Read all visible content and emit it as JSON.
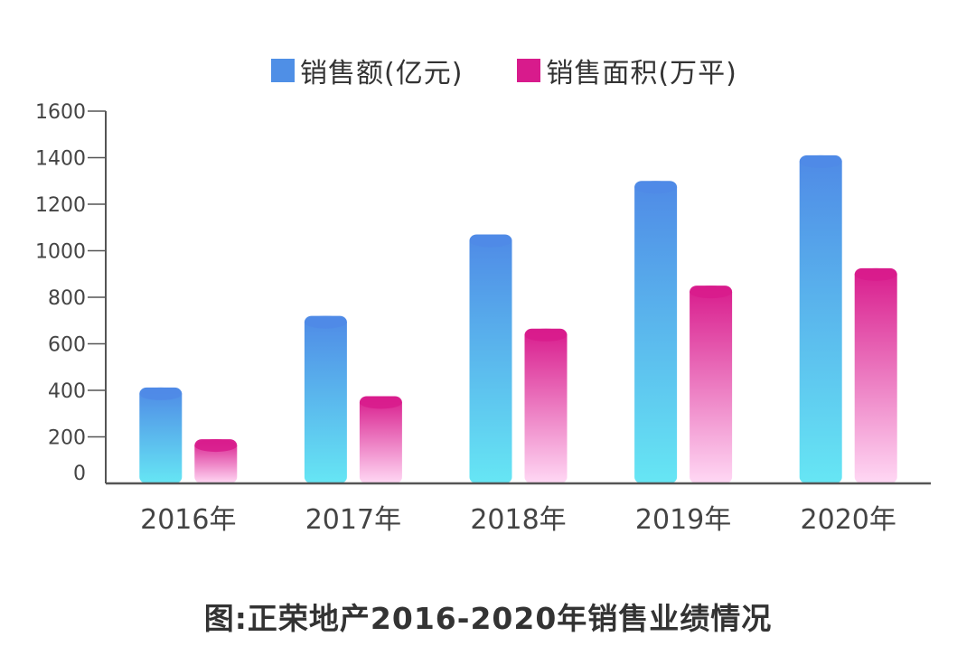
{
  "chart_data": {
    "type": "bar",
    "title": "",
    "caption": "图:正荣地产2016-2020年销售业绩情况",
    "categories": [
      "2016年",
      "2017年",
      "2018年",
      "2019年",
      "2020年"
    ],
    "series": [
      {
        "name": "销售额(亿元)",
        "values": [
          412,
          720,
          1070,
          1300,
          1410
        ],
        "color": "#4f8fe6"
      },
      {
        "name": "销售面积(万平)",
        "values": [
          190,
          375,
          665,
          850,
          925
        ],
        "color": "#d81b8c"
      }
    ],
    "ylim": [
      0,
      1600
    ],
    "yticks": [
      "0",
      "200",
      "400",
      "600",
      "800",
      "1000",
      "1200",
      "1400",
      "1600"
    ],
    "xlabel": "",
    "ylabel": "",
    "legend": "top-center",
    "grid": false
  },
  "colors": {
    "series1_top": "#4f8ae6",
    "series1_bottom": "#66e6f4",
    "series2_top": "#d81b8c",
    "series2_bottom": "#ffd8f4",
    "axis": "#555555",
    "text": "#444444"
  }
}
